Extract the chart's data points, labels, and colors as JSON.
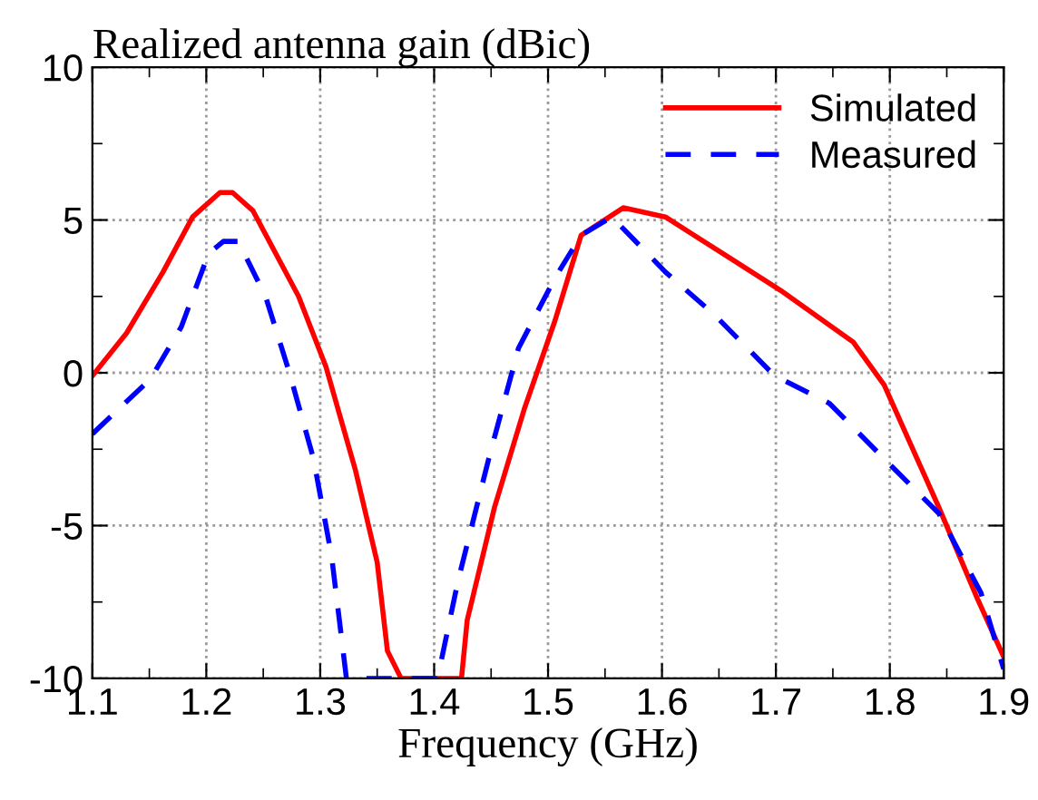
{
  "chart_data": {
    "type": "line",
    "title": "Realized antenna gain (dBic)",
    "xlabel": "Frequency (GHz)",
    "xlim": [
      1.1,
      1.9
    ],
    "xticks": [
      1.1,
      1.2,
      1.3,
      1.4,
      1.5,
      1.6,
      1.7,
      1.8,
      1.9
    ],
    "ylim": [
      -10,
      10
    ],
    "yticks": [
      -10,
      -5,
      0,
      5,
      10
    ],
    "grid": true,
    "legend": "top right",
    "series": [
      {
        "name": "Simulated",
        "color": "#ff0000",
        "line_style": "solid",
        "x": [
          1.1,
          1.13,
          1.162,
          1.188,
          1.212,
          1.223,
          1.241,
          1.281,
          1.305,
          1.331,
          1.35,
          1.359,
          1.371,
          1.424,
          1.429,
          1.453,
          1.479,
          1.506,
          1.529,
          1.566,
          1.603,
          1.662,
          1.704,
          1.768,
          1.795,
          1.843,
          1.877,
          1.9
        ],
        "values": [
          -0.1,
          1.3,
          3.3,
          5.1,
          5.9,
          5.9,
          5.3,
          2.5,
          0.2,
          -3.2,
          -6.2,
          -9.1,
          -10,
          -10,
          -8.1,
          -4.4,
          -1.2,
          1.7,
          4.5,
          5.4,
          5.1,
          3.7,
          2.7,
          1.0,
          -0.4,
          -4.4,
          -7.4,
          -9.3
        ]
      },
      {
        "name": "Measured",
        "color": "#0000ff",
        "line_style": "dashed",
        "x": [
          1.1,
          1.151,
          1.178,
          1.202,
          1.215,
          1.228,
          1.252,
          1.273,
          1.294,
          1.31,
          1.323,
          1.403,
          1.421,
          1.448,
          1.474,
          1.506,
          1.529,
          1.556,
          1.603,
          1.646,
          1.699,
          1.747,
          1.8,
          1.843,
          1.88,
          1.9
        ],
        "values": [
          -2.0,
          -0.2,
          1.5,
          3.9,
          4.3,
          4.3,
          2.5,
          0.0,
          -2.8,
          -6.0,
          -10,
          -10,
          -6.8,
          -2.8,
          0.8,
          3.1,
          4.5,
          5.1,
          3.3,
          1.9,
          -0.1,
          -1.0,
          -3.0,
          -4.6,
          -7.2,
          -9.7
        ]
      }
    ]
  }
}
